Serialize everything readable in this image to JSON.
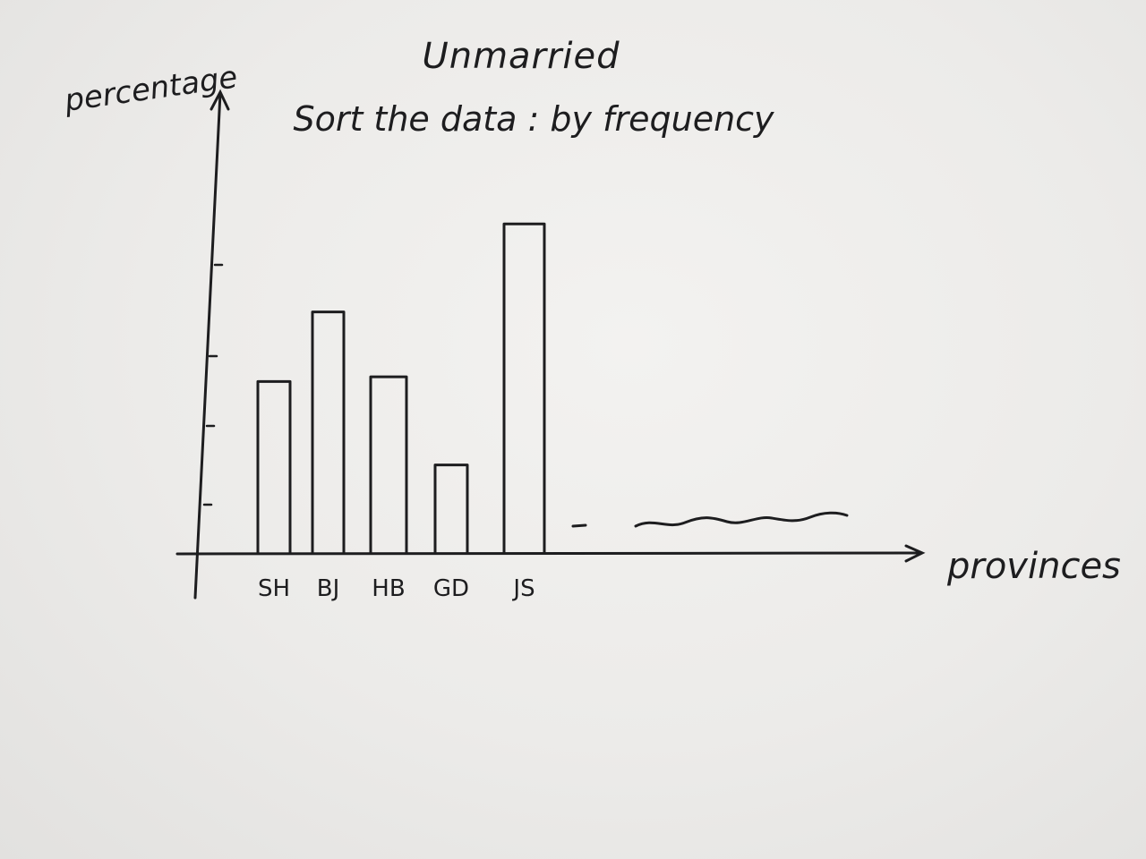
{
  "chart_data": {
    "type": "bar",
    "title": "Unmarried",
    "subtitle": "Sort the data : by frequency",
    "ylabel": "percentage",
    "xlabel": "provinces",
    "categories": [
      "SH",
      "BJ",
      "HB",
      "GD",
      "JS"
    ],
    "values": [
      37,
      52,
      38,
      19,
      71
    ],
    "ylim": [
      0,
      100
    ],
    "grid": false,
    "legend": "none",
    "continuation": "- ~~~~~~"
  }
}
